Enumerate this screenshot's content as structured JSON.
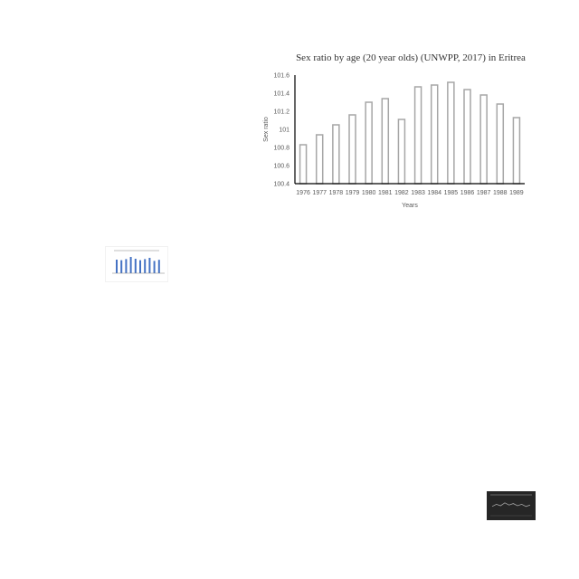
{
  "chart_data": {
    "type": "bar",
    "title": "Sex ratio by age (20 year olds) (UNWPP, 2017) in Eritrea",
    "xlabel": "Years",
    "ylabel": "Sex ratio",
    "categories": [
      "1976",
      "1977",
      "1978",
      "1979",
      "1980",
      "1981",
      "1982",
      "1983",
      "1984",
      "1985",
      "1986",
      "1987",
      "1988",
      "1989"
    ],
    "values": [
      100.83,
      100.94,
      101.05,
      101.16,
      101.3,
      101.34,
      101.11,
      101.47,
      101.49,
      101.52,
      101.44,
      101.38,
      101.28,
      101.13
    ],
    "ylim": [
      100.4,
      101.6
    ],
    "yticks": [
      "100.4",
      "100.6",
      "100.8",
      "101",
      "101.2",
      "101.4",
      "101.6"
    ],
    "grid": false,
    "colors": {
      "bar_fill": "#ffffff",
      "bar_stroke": "#a6a6a6",
      "axis": "#000000",
      "text": "#595959"
    }
  },
  "thumbnails": {
    "light_chart": {
      "bar_color": "#4472c4",
      "bar_values": [
        0.75,
        0.72,
        0.78,
        0.9,
        0.8,
        0.72,
        0.78,
        0.85,
        0.68,
        0.74
      ]
    },
    "dark_chart": {
      "line_color": "#a6a6a6",
      "line_values": [
        0.45,
        0.6,
        0.5,
        0.7,
        0.55,
        0.65,
        0.5,
        0.6,
        0.45,
        0.55
      ]
    }
  }
}
